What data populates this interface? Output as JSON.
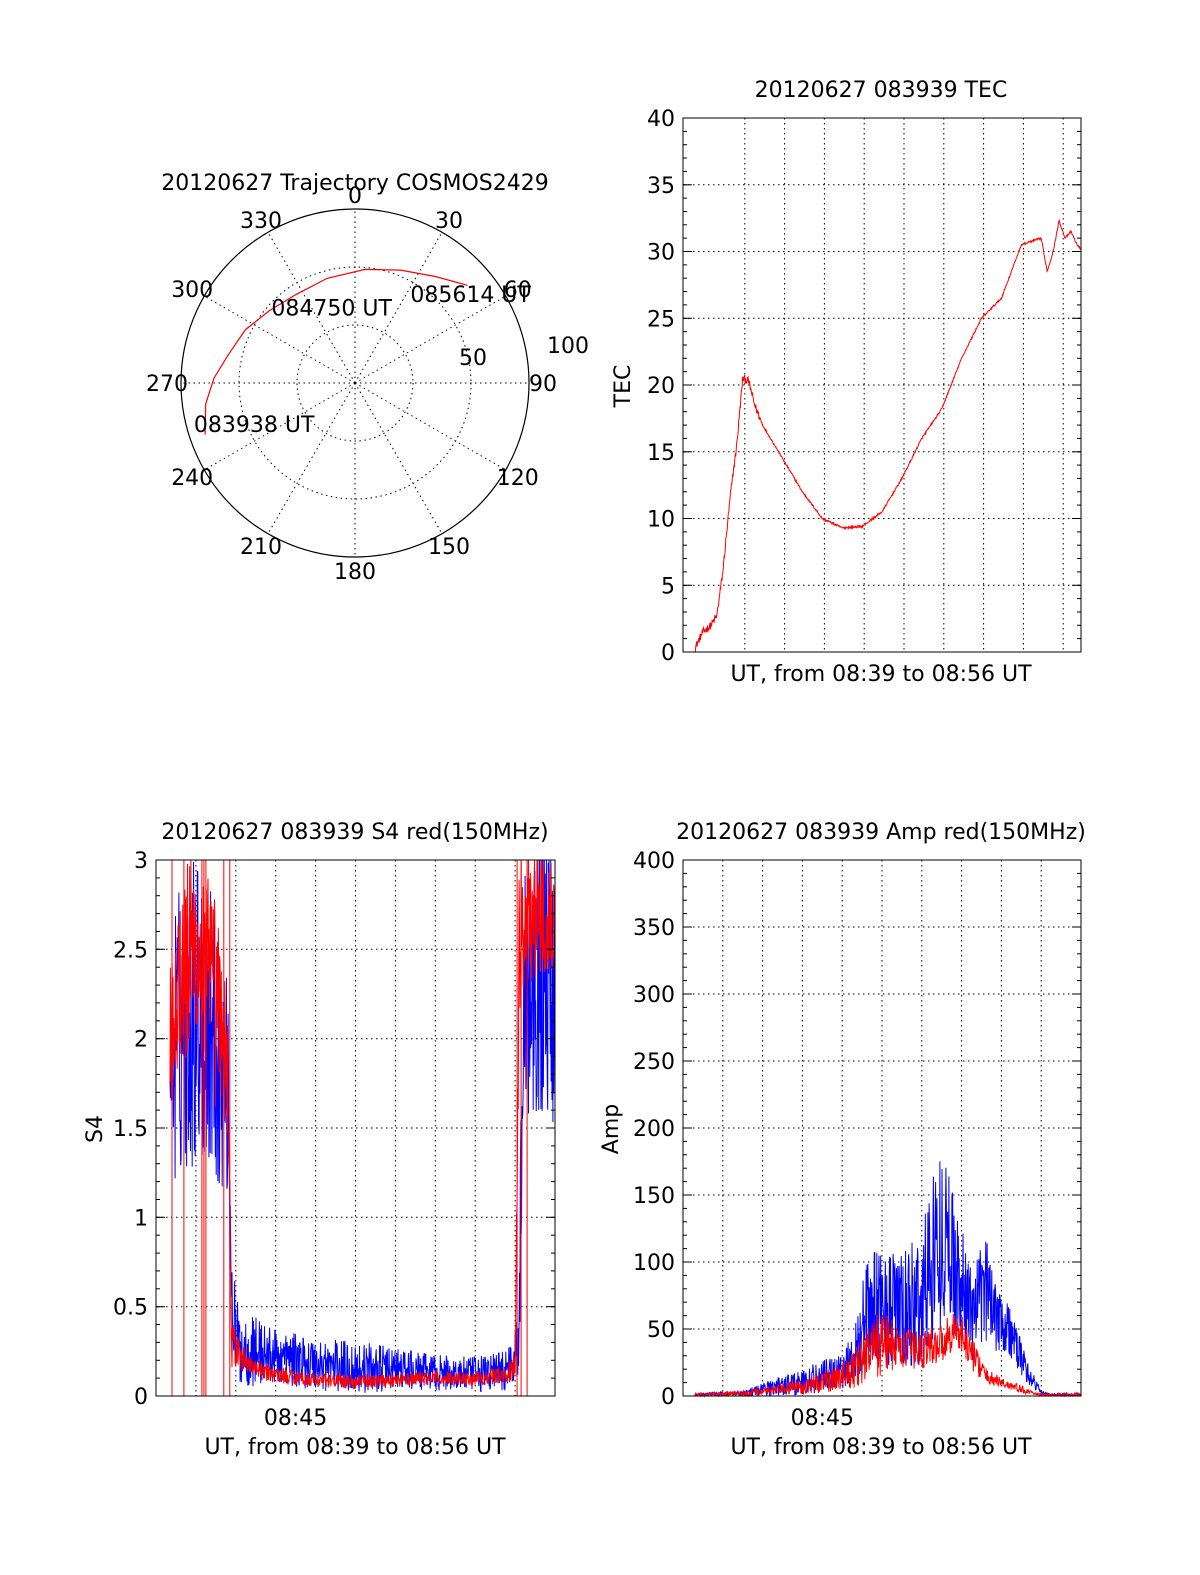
{
  "chart_data": [
    {
      "type": "polar",
      "title": "20120627 Trajectory COSMOS2429",
      "angle_labels": [
        "0",
        "30",
        "60",
        "90",
        "120",
        "150",
        "180",
        "210",
        "240",
        "270",
        "300",
        "330"
      ],
      "radial_labels": [
        "50",
        "100"
      ],
      "colors": {
        "trajectory": "#ff0000"
      },
      "series": [
        {
          "color": "#ff0000",
          "points": [
            {
              "az": 251,
              "el": 8
            },
            {
              "az": 262,
              "el": 12
            },
            {
              "az": 272,
              "el": 17
            },
            {
              "az": 283,
              "el": 23
            },
            {
              "az": 296,
              "el": 27
            },
            {
              "az": 310,
              "el": 32
            },
            {
              "az": 326,
              "el": 35
            },
            {
              "az": 345,
              "el": 34
            },
            {
              "az": 5,
              "el": 31
            },
            {
              "az": 22,
              "el": 27
            },
            {
              "az": 37,
              "el": 21
            },
            {
              "az": 49,
              "el": 13
            }
          ]
        }
      ],
      "annotations": [
        {
          "text": "085614 UT",
          "az": 55,
          "el": 17
        },
        {
          "text": "084750 UT",
          "az": 341,
          "el": 53
        },
        {
          "text": "083938 UT",
          "az": 244,
          "el": 32
        }
      ]
    },
    {
      "type": "line",
      "title": "20120627 083939 TEC",
      "xlabel": "UT, from 08:39 to 08:56 UT",
      "ylabel": "TEC",
      "xlim": [
        0,
        1
      ],
      "ylim": [
        0,
        40
      ],
      "yticks": [
        "0",
        "5",
        "10",
        "15",
        "20",
        "25",
        "30",
        "35",
        "40"
      ],
      "grid": true,
      "series": [
        {
          "color": "#ff0000",
          "x": [
            0.03,
            0.05,
            0.07,
            0.085,
            0.1,
            0.12,
            0.135,
            0.15,
            0.165,
            0.18,
            0.2,
            0.25,
            0.3,
            0.35,
            0.4,
            0.45,
            0.5,
            0.55,
            0.6,
            0.65,
            0.7,
            0.75,
            0.8,
            0.85,
            0.9,
            0.915,
            0.93,
            0.945,
            0.96,
            0.975,
            0.99,
            1.0
          ],
          "y": [
            0.3,
            1.5,
            2.0,
            2.7,
            6.0,
            12.0,
            15.5,
            20.5,
            20.3,
            18.5,
            17.0,
            14.5,
            12.0,
            10.0,
            9.3,
            9.4,
            10.5,
            13.0,
            16.0,
            18.2,
            22.0,
            25.0,
            26.5,
            30.5,
            31.0,
            28.5,
            30.0,
            32.3,
            31.0,
            31.5,
            30.5,
            30.2
          ],
          "noise": 0.3
        }
      ]
    },
    {
      "type": "line",
      "title": "20120627 083939 S4 red(150MHz)",
      "xlabel": "UT, from 08:39 to 08:56 UT",
      "ylabel": "S4",
      "xlim": [
        0,
        1
      ],
      "ylim": [
        0,
        3
      ],
      "yticks": [
        "0",
        "0.5",
        "1",
        "1.5",
        "2",
        "2.5",
        "3"
      ],
      "xticks": [
        {
          "x": 0.35,
          "label": "08:45"
        }
      ],
      "grid": true,
      "series": [
        {
          "color": "#0000ff",
          "x": [
            0.035,
            0.05,
            0.1,
            0.15,
            0.18,
            0.19,
            0.2,
            0.22,
            0.25,
            0.3,
            0.35,
            0.4,
            0.5,
            0.6,
            0.7,
            0.8,
            0.88,
            0.91,
            0.92,
            0.95,
            1.0
          ],
          "y": [
            1.8,
            2.0,
            2.2,
            2.0,
            1.7,
            0.6,
            0.3,
            0.25,
            0.25,
            0.22,
            0.2,
            0.18,
            0.16,
            0.15,
            0.13,
            0.12,
            0.15,
            0.3,
            2.2,
            2.5,
            2.3
          ],
          "noise": [
            0.6,
            0.8,
            0.9,
            0.8,
            0.6,
            0.35,
            0.25,
            0.2,
            0.2,
            0.15,
            0.15,
            0.15,
            0.15,
            0.12,
            0.1,
            0.1,
            0.12,
            0.2,
            0.8,
            0.9,
            0.8
          ]
        },
        {
          "color": "#ff0000",
          "x": [
            0.035,
            0.05,
            0.1,
            0.15,
            0.18,
            0.19,
            0.2,
            0.25,
            0.3,
            0.4,
            0.5,
            0.6,
            0.7,
            0.8,
            0.88,
            0.9,
            0.91,
            0.93,
            1.0
          ],
          "y": [
            2.0,
            2.3,
            2.5,
            2.2,
            1.8,
            0.3,
            0.25,
            0.15,
            0.12,
            0.09,
            0.08,
            0.09,
            0.1,
            0.1,
            0.12,
            0.15,
            2.5,
            2.7,
            2.7
          ],
          "noise": [
            0.5,
            0.6,
            0.6,
            0.6,
            0.4,
            0.15,
            0.1,
            0.05,
            0.05,
            0.04,
            0.04,
            0.04,
            0.04,
            0.04,
            0.05,
            0.1,
            0.5,
            0.4,
            0.3
          ]
        }
      ]
    },
    {
      "type": "line",
      "title": "20120627 083939 Amp red(150MHz)",
      "xlabel": "UT, from 08:39 to 08:56 UT",
      "ylabel": "Amp",
      "xlim": [
        0,
        1
      ],
      "ylim": [
        0,
        400
      ],
      "yticks": [
        "0",
        "50",
        "100",
        "150",
        "200",
        "250",
        "300",
        "350",
        "400"
      ],
      "xticks": [
        {
          "x": 0.35,
          "label": "08:45"
        }
      ],
      "grid": true,
      "series": [
        {
          "color": "#0000ff",
          "x": [
            0.03,
            0.15,
            0.2,
            0.25,
            0.3,
            0.35,
            0.4,
            0.43,
            0.46,
            0.5,
            0.55,
            0.6,
            0.63,
            0.66,
            0.7,
            0.73,
            0.76,
            0.8,
            0.84,
            0.87,
            0.9,
            0.92,
            1.0
          ],
          "y": [
            1,
            2,
            5,
            8,
            10,
            15,
            20,
            30,
            60,
            70,
            60,
            70,
            110,
            120,
            80,
            60,
            80,
            60,
            35,
            15,
            3,
            1,
            1
          ],
          "noise": [
            1,
            2,
            5,
            8,
            10,
            12,
            15,
            20,
            40,
            45,
            45,
            55,
            70,
            60,
            45,
            35,
            40,
            30,
            15,
            8,
            2,
            1,
            1
          ]
        },
        {
          "color": "#ff0000",
          "x": [
            0.03,
            0.15,
            0.25,
            0.35,
            0.4,
            0.43,
            0.46,
            0.5,
            0.55,
            0.6,
            0.65,
            0.68,
            0.7,
            0.73,
            0.76,
            0.8,
            0.85,
            0.88,
            0.9,
            1.0
          ],
          "y": [
            1,
            2,
            5,
            10,
            15,
            20,
            30,
            40,
            35,
            35,
            40,
            50,
            45,
            30,
            15,
            10,
            5,
            2,
            1,
            1
          ],
          "noise": [
            1,
            2,
            4,
            8,
            10,
            15,
            20,
            25,
            15,
            15,
            15,
            15,
            15,
            12,
            6,
            4,
            3,
            1,
            1,
            1
          ]
        }
      ]
    }
  ]
}
